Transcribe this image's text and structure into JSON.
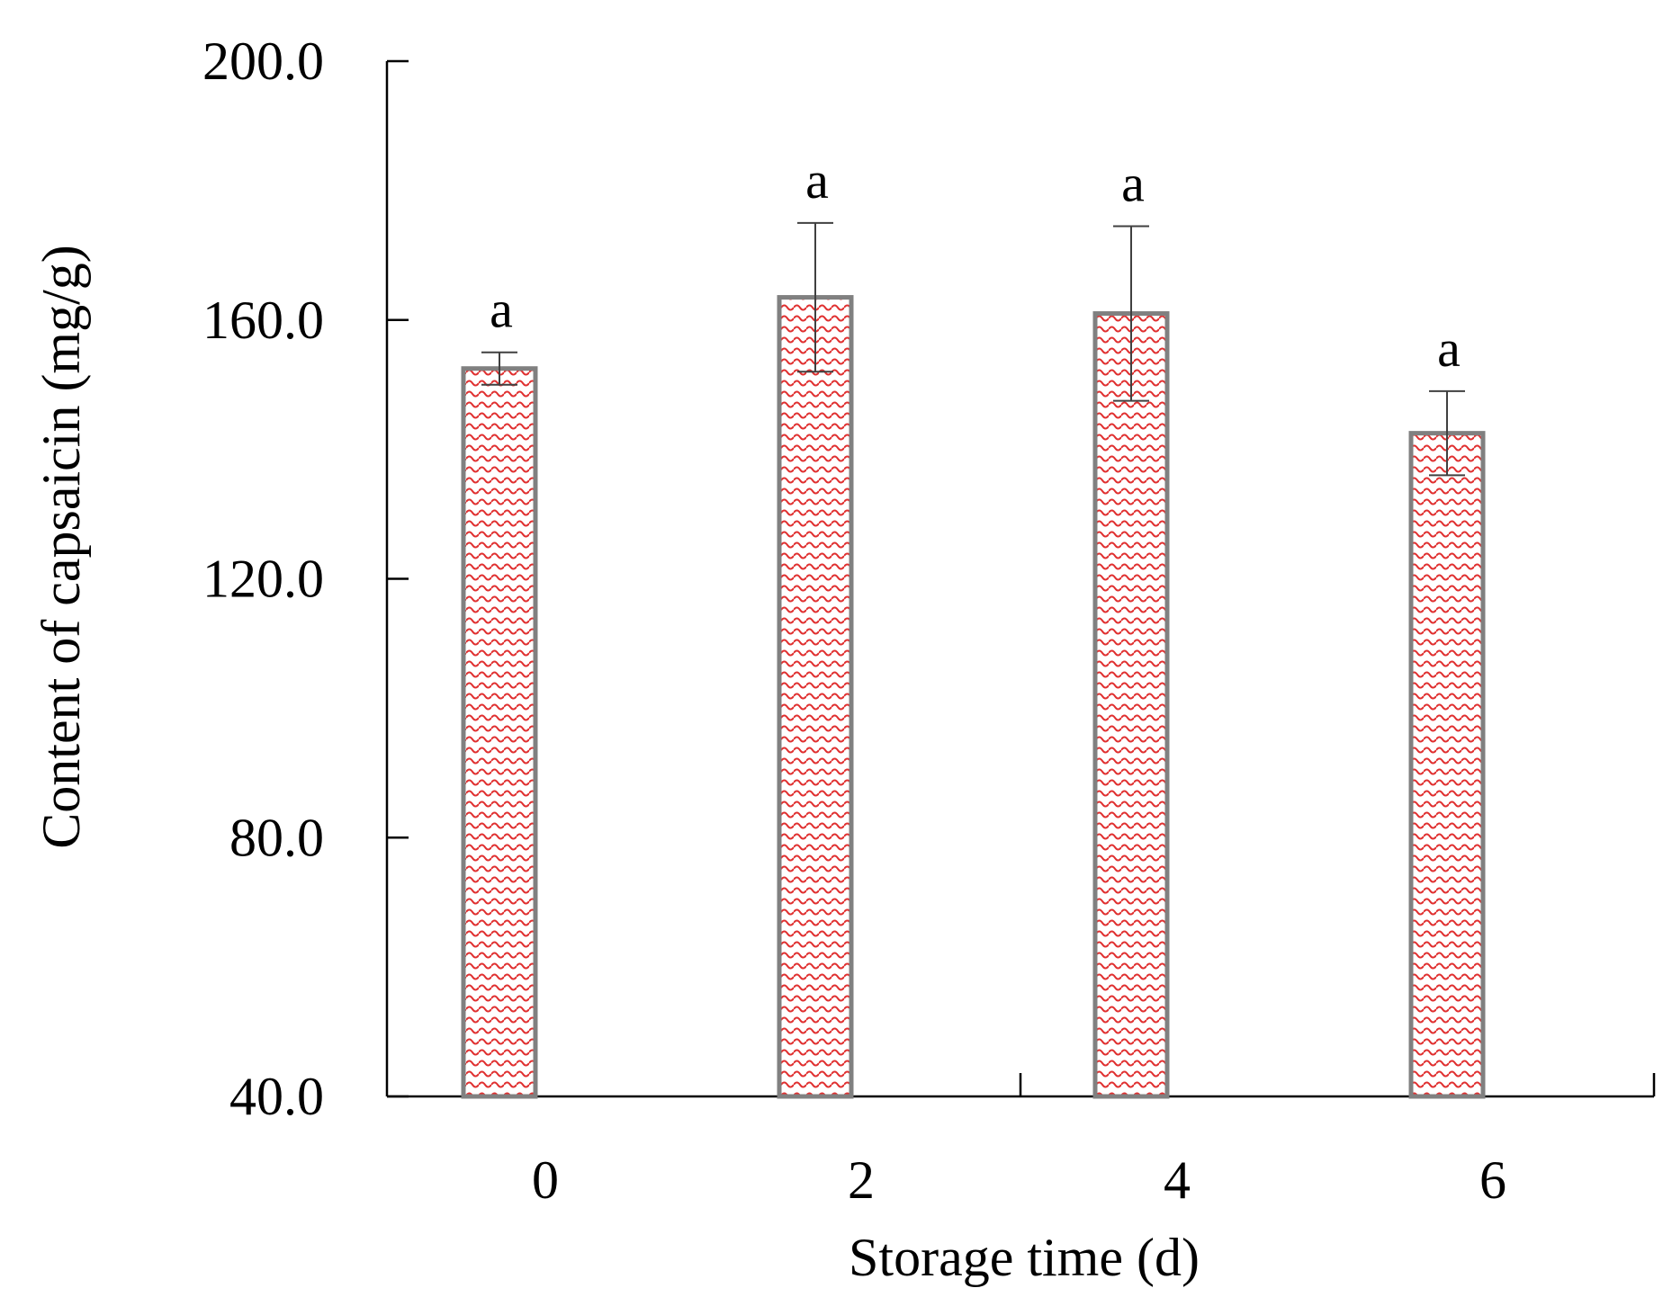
{
  "chart_data": {
    "type": "bar",
    "title": "",
    "xlabel": "Storage time (d)",
    "ylabel": "Content of capsaicin (mg/g)",
    "categories": [
      "0",
      "2",
      "4",
      "6"
    ],
    "values": [
      152.5,
      163.5,
      161.0,
      142.5
    ],
    "error": [
      2.5,
      11.5,
      13.5,
      6.5
    ],
    "significance": [
      "a",
      "a",
      "a",
      "a"
    ],
    "ylim": [
      40.0,
      200.0
    ],
    "yticks": [
      "40.0",
      "80.0",
      "120.0",
      "160.0",
      "200.0"
    ],
    "ytick_values": [
      40,
      80,
      120,
      160,
      200
    ],
    "grid": false,
    "legend": "none",
    "colors": {
      "bar_pattern": "#e03030",
      "bar_outline": "#808080",
      "error_bar": "#404040",
      "axis": "#000000"
    }
  }
}
